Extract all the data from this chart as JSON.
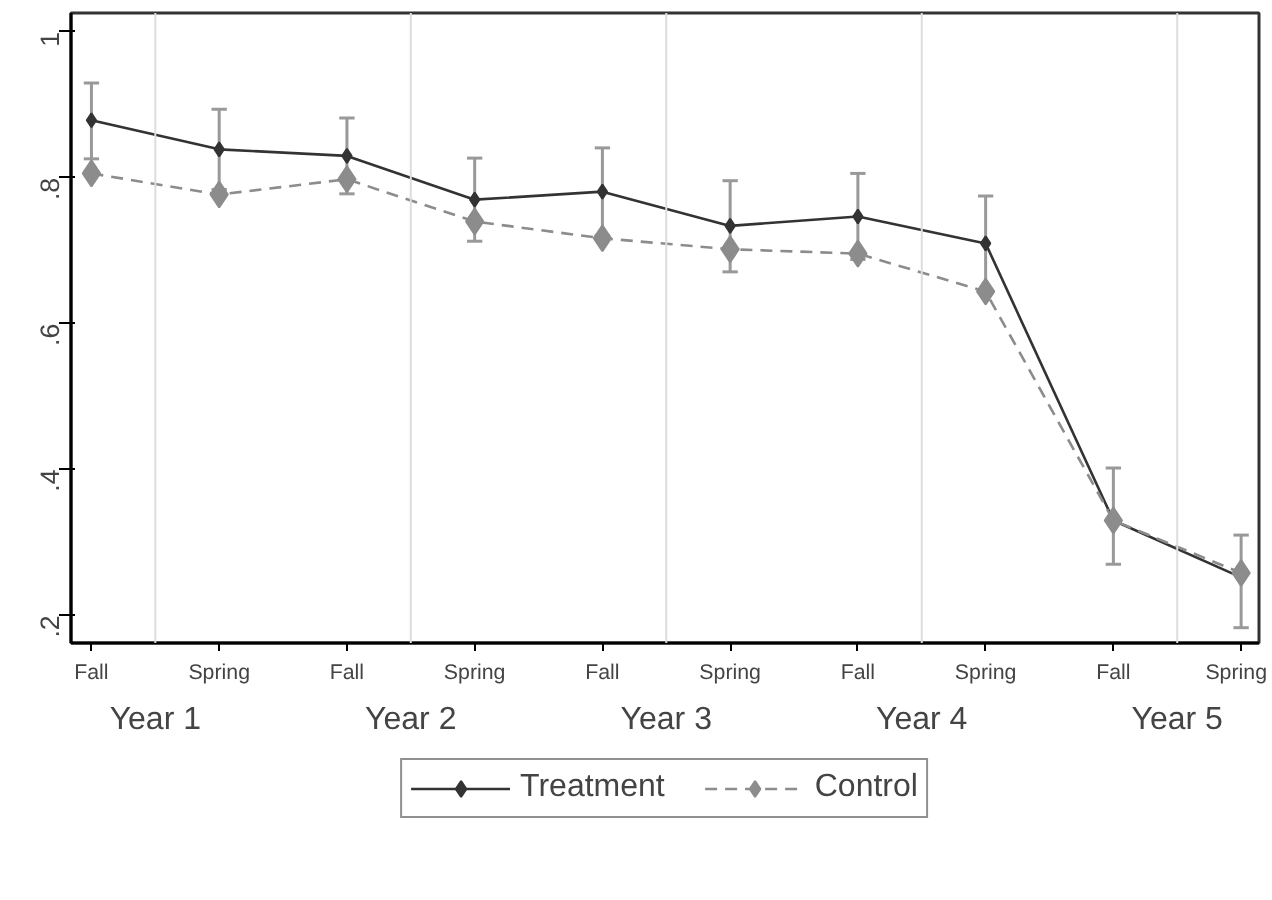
{
  "chart_data": {
    "type": "line",
    "categories": [
      "Fall",
      "Spring",
      "Fall",
      "Spring",
      "Fall",
      "Spring",
      "Fall",
      "Spring",
      "Fall",
      "Spring"
    ],
    "annotations": [
      "Year 1",
      "Year 2",
      "Year 3",
      "Year 4",
      "Year 5"
    ],
    "ylim": [
      0.162,
      1.026
    ],
    "yticks": [
      {
        "value": 0.2,
        "label": ".2"
      },
      {
        "value": 0.4,
        "label": ".4"
      },
      {
        "value": 0.6,
        "label": ".6"
      },
      {
        "value": 0.8,
        "label": ".8"
      },
      1
    ],
    "grid": "x",
    "legend": "bottom",
    "marker": "diamond",
    "series": [
      {
        "name": "Treatment",
        "color": "#333333",
        "line_style": "solid",
        "values": [
          0.879,
          0.839,
          0.83,
          0.77,
          0.781,
          0.734,
          0.747,
          0.71,
          0.33,
          0.252
        ],
        "errors": [
          [
            0.826,
            0.93
          ],
          [
            0.784,
            0.894
          ],
          [
            0.778,
            0.882
          ],
          [
            0.713,
            0.827
          ],
          [
            0.721,
            0.841
          ],
          [
            0.671,
            0.796
          ],
          [
            0.688,
            0.806
          ],
          [
            0.645,
            0.775
          ],
          [
            0.27,
            0.402
          ],
          [
            0.183,
            0.31
          ]
        ]
      },
      {
        "name": "Control",
        "color": "#8c8c8c",
        "line_style": "dashed",
        "values": [
          0.806,
          0.777,
          0.798,
          0.74,
          0.717,
          0.702,
          0.696,
          0.644,
          0.33,
          0.258
        ]
      }
    ]
  }
}
